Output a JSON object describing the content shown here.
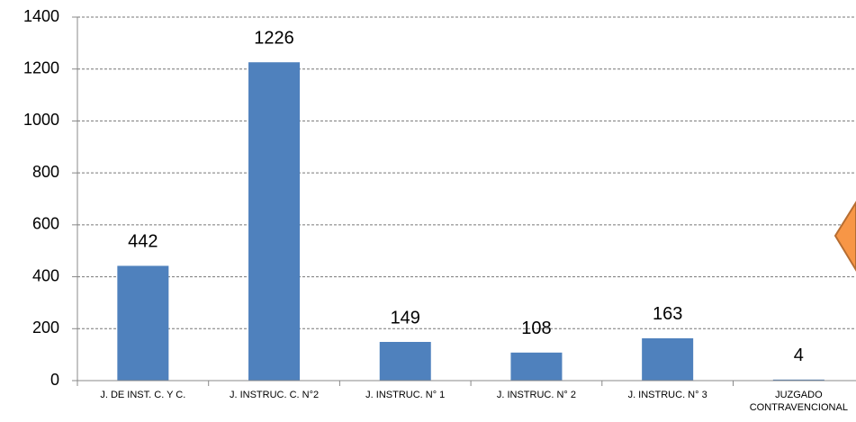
{
  "chart_data": {
    "type": "bar",
    "categories": [
      "J. DE INST. C. Y C.",
      "J.  INSTRUC. C. N°2",
      "J.  INSTRUC. N° 1",
      "J.  INSTRUC. N° 2",
      "J.  INSTRUC. N° 3",
      "JUZGADO CONTRAVENCIONAL"
    ],
    "values": [
      442,
      1226,
      149,
      108,
      163,
      4
    ],
    "color": "#4f81bd",
    "ylim": [
      0,
      1400
    ],
    "yticks": [
      0,
      200,
      400,
      600,
      800,
      1000,
      1200,
      1400
    ],
    "grid": true
  }
}
